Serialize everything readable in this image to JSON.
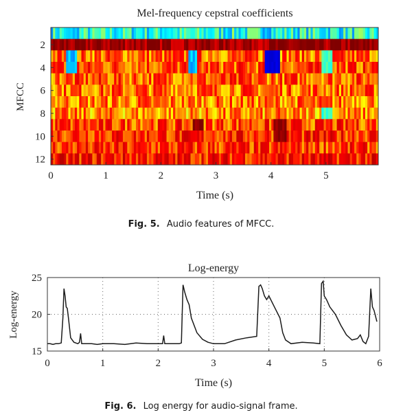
{
  "figure5": {
    "caption_label": "Fig. 5.",
    "caption_text": "Audio features of MFCC.",
    "chart_data": {
      "type": "heatmap",
      "title": "Mel-frequency cepstral coefficients",
      "xlabel": "Time (s)",
      "ylabel": "MFCC",
      "xlim": [
        0,
        6
      ],
      "ylim": [
        1,
        12
      ],
      "x_ticks": [
        0,
        1,
        2,
        3,
        4,
        5
      ],
      "y_ticks": [
        2,
        4,
        6,
        8,
        10,
        12
      ],
      "rows": 12,
      "time_columns": 150,
      "row_profile": [
        {
          "coef": 1,
          "level": 0.42
        },
        {
          "coef": 2,
          "level": 0.95
        },
        {
          "coef": 3,
          "level": 0.72
        },
        {
          "coef": 4,
          "level": 0.74
        },
        {
          "coef": 5,
          "level": 0.73
        },
        {
          "coef": 6,
          "level": 0.72
        },
        {
          "coef": 7,
          "level": 0.7
        },
        {
          "coef": 8,
          "level": 0.68
        },
        {
          "coef": 9,
          "level": 0.75
        },
        {
          "coef": 10,
          "level": 0.78
        },
        {
          "coef": 11,
          "level": 0.76
        },
        {
          "coef": 12,
          "level": 0.8
        }
      ],
      "features": [
        {
          "t_start": 0.3,
          "t_end": 0.45,
          "coefs": [
            1,
            3,
            4
          ],
          "level": 0.35
        },
        {
          "t_start": 2.5,
          "t_end": 2.65,
          "coefs": [
            3,
            4
          ],
          "level": 0.35
        },
        {
          "t_start": 3.9,
          "t_end": 4.15,
          "coefs": [
            3,
            4
          ],
          "level": 0.15
        },
        {
          "t_start": 2.6,
          "t_end": 2.75,
          "coefs": [
            9
          ],
          "level": 0.98
        },
        {
          "t_start": 4.05,
          "t_end": 4.25,
          "coefs": [
            9,
            10
          ],
          "level": 0.97
        },
        {
          "t_start": 4.95,
          "t_end": 5.1,
          "coefs": [
            3,
            4,
            8
          ],
          "level": 0.45
        }
      ],
      "colormap": [
        "#00008f",
        "#0000ff",
        "#00ffff",
        "#ffff00",
        "#ff0000",
        "#800000"
      ],
      "grid": false
    }
  },
  "figure6": {
    "caption_label": "Fig. 6.",
    "caption_text": "Log energy for audio-signal frame.",
    "chart_data": {
      "type": "line",
      "title": "Log-energy",
      "xlabel": "Time (s)",
      "ylabel": "Log-energy",
      "xlim": [
        0,
        6
      ],
      "ylim": [
        15,
        25
      ],
      "x_ticks": [
        0,
        1,
        2,
        3,
        4,
        5,
        6
      ],
      "y_ticks": [
        15,
        20,
        25
      ],
      "grid": true,
      "grid_style": "dotted",
      "series": [
        {
          "x": [
            0,
            0.05,
            0.1,
            0.15,
            0.2,
            0.25,
            0.28,
            0.3,
            0.32,
            0.34,
            0.36,
            0.38,
            0.42,
            0.48,
            0.55,
            0.58,
            0.6,
            0.62,
            0.7,
            0.8,
            0.9,
            1.0,
            1.2,
            1.4,
            1.6,
            1.8,
            2.0,
            2.08,
            2.1,
            2.12,
            2.2,
            2.3,
            2.38,
            2.42,
            2.45,
            2.48,
            2.52,
            2.56,
            2.6,
            2.7,
            2.8,
            2.9,
            3.0,
            3.2,
            3.4,
            3.6,
            3.78,
            3.82,
            3.85,
            3.88,
            3.92,
            3.96,
            4.0,
            4.1,
            4.2,
            4.25,
            4.3,
            4.4,
            4.6,
            4.8,
            4.92,
            4.95,
            4.98,
            5.0,
            5.04,
            5.1,
            5.15,
            5.2,
            5.3,
            5.4,
            5.5,
            5.6,
            5.65,
            5.7,
            5.75,
            5.8,
            5.84,
            5.87,
            5.9,
            5.95
          ],
          "values": [
            16.0,
            16.0,
            15.9,
            16.0,
            16.0,
            16.1,
            19.5,
            23.5,
            22.5,
            21.0,
            20.8,
            19.5,
            16.8,
            16.2,
            16.0,
            16.2,
            17.4,
            16.0,
            16.0,
            16.0,
            15.9,
            16.0,
            16.0,
            15.9,
            16.1,
            16.0,
            16.0,
            16.0,
            17.1,
            16.0,
            16.0,
            16.0,
            16.0,
            16.1,
            24.0,
            23.0,
            22.0,
            21.3,
            19.5,
            17.5,
            16.6,
            16.2,
            16.0,
            16.0,
            16.5,
            16.8,
            17.0,
            23.8,
            24.0,
            23.5,
            22.5,
            22.0,
            22.5,
            21.0,
            19.5,
            17.5,
            16.5,
            16.0,
            16.2,
            16.1,
            16.0,
            24.2,
            24.5,
            22.5,
            22.0,
            21.0,
            20.5,
            20.0,
            18.5,
            17.2,
            16.5,
            16.7,
            17.2,
            16.3,
            16.0,
            17.0,
            23.5,
            21.0,
            20.5,
            19.0
          ]
        }
      ]
    }
  }
}
